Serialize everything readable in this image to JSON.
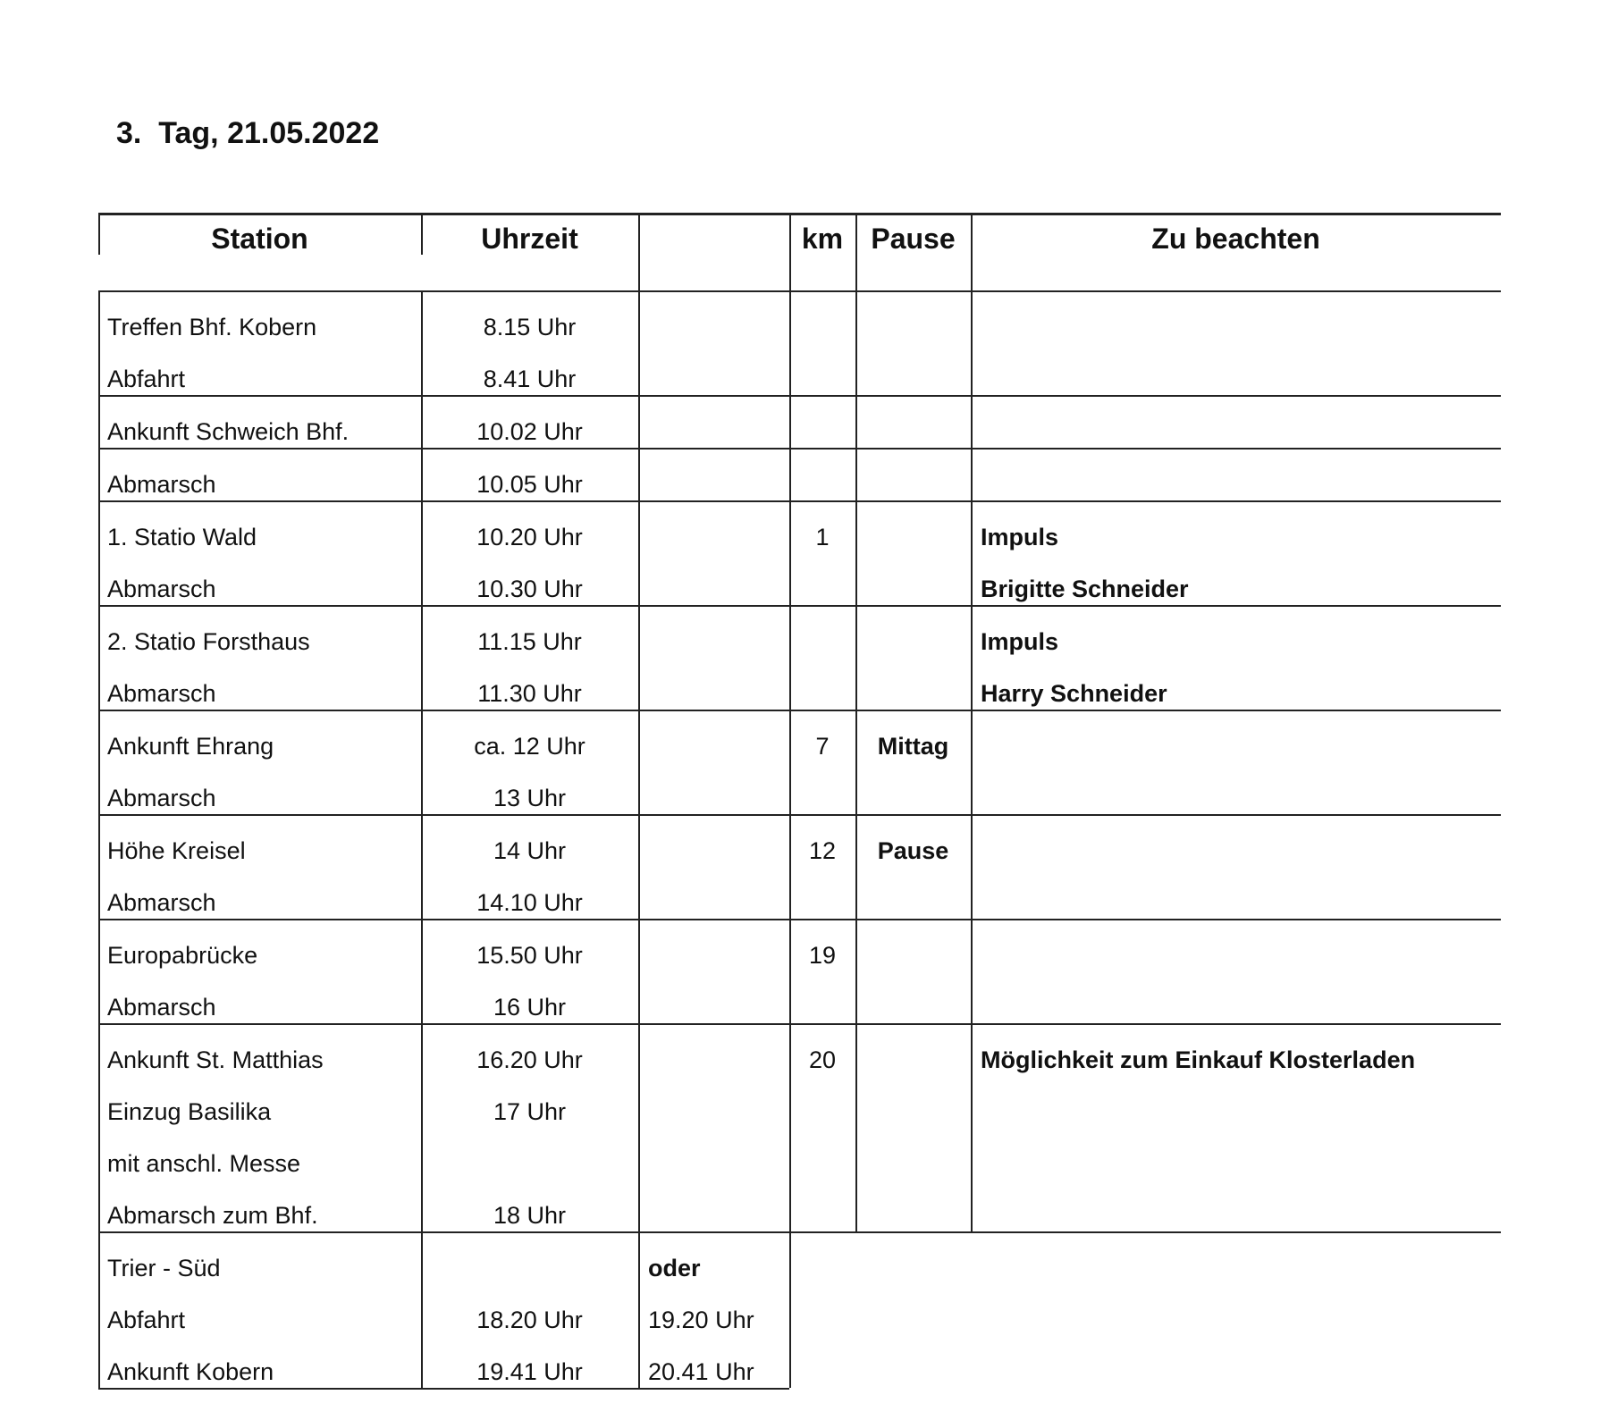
{
  "title": "3.  Tag, 21.05.2022",
  "headers": {
    "station": "Station",
    "time": "Uhrzeit",
    "alt": "",
    "km": "km",
    "pause": "Pause",
    "notes": "Zu beachten"
  },
  "rows": [
    {
      "station": [
        "Treffen Bhf. Kobern",
        "Abfahrt"
      ],
      "time": [
        "8.15 Uhr",
        "8.41 Uhr"
      ],
      "alt": [],
      "km": [],
      "pause": [],
      "notes": []
    },
    {
      "station": [
        "Ankunft Schweich Bhf."
      ],
      "time": [
        "10.02 Uhr"
      ],
      "alt": [],
      "km": [],
      "pause": [],
      "notes": []
    },
    {
      "station": [
        "Abmarsch"
      ],
      "time": [
        "10.05 Uhr"
      ],
      "alt": [],
      "km": [],
      "pause": [],
      "notes": []
    },
    {
      "station": [
        "1. Statio Wald",
        "Abmarsch"
      ],
      "time": [
        "10.20 Uhr",
        "10.30 Uhr"
      ],
      "alt": [],
      "km": [
        "1"
      ],
      "pause": [],
      "notes": [
        "Impuls",
        "Brigitte Schneider"
      ]
    },
    {
      "station": [
        "2. Statio Forsthaus",
        "Abmarsch"
      ],
      "time": [
        "11.15 Uhr",
        "11.30 Uhr"
      ],
      "alt": [],
      "km": [],
      "pause": [],
      "notes": [
        "Impuls",
        "Harry Schneider"
      ]
    },
    {
      "station": [
        "Ankunft Ehrang",
        "Abmarsch"
      ],
      "time": [
        "ca. 12 Uhr",
        "13 Uhr"
      ],
      "alt": [],
      "km": [
        "7"
      ],
      "pause": [
        "Mittag"
      ],
      "notes": []
    },
    {
      "station": [
        "Höhe Kreisel",
        "Abmarsch"
      ],
      "time": [
        "14 Uhr",
        "14.10 Uhr"
      ],
      "alt": [],
      "km": [
        "12"
      ],
      "pause": [
        "Pause"
      ],
      "notes": []
    },
    {
      "station": [
        "Europabrücke",
        "Abmarsch"
      ],
      "time": [
        "15.50 Uhr",
        "16 Uhr"
      ],
      "alt": [],
      "km": [
        "19"
      ],
      "pause": [],
      "notes": []
    },
    {
      "station": [
        "Ankunft St. Matthias",
        "Einzug Basilika",
        "mit anschl. Messe",
        "Abmarsch zum Bhf."
      ],
      "time": [
        "16.20 Uhr",
        "17 Uhr",
        "",
        "18 Uhr"
      ],
      "alt": [],
      "km": [
        "20"
      ],
      "pause": [],
      "notes": [
        "Möglichkeit zum Einkauf Klosterladen"
      ]
    },
    {
      "station": [
        "Trier - Süd",
        "Abfahrt",
        "Ankunft Kobern"
      ],
      "time": [
        "",
        "18.20 Uhr",
        "19.41 Uhr"
      ],
      "alt": [
        "oder",
        "19.20 Uhr",
        "20.41 Uhr"
      ],
      "km": [],
      "pause": [],
      "notes": []
    }
  ]
}
